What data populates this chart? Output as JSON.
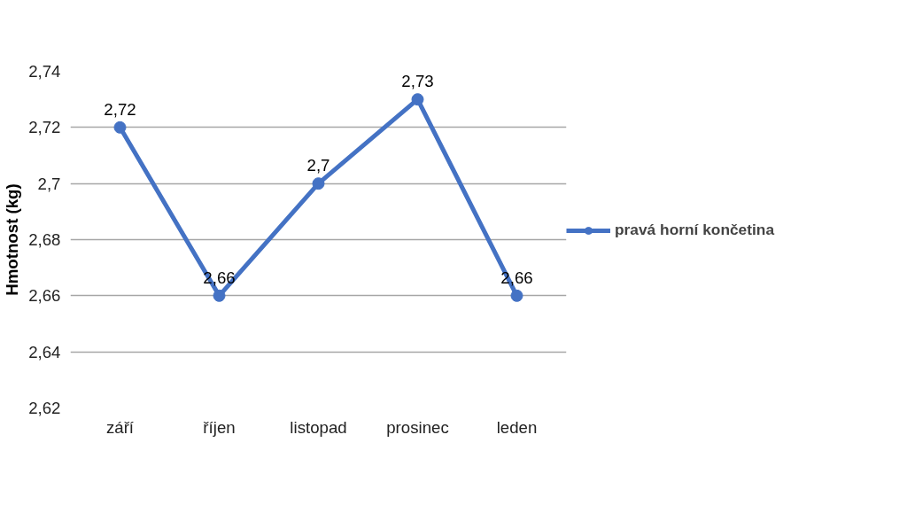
{
  "chart_data": {
    "type": "line",
    "ylabel": "Hmotnost (kg)",
    "categories": [
      "září",
      "říjen",
      "listopad",
      "prosinec",
      "leden"
    ],
    "series": [
      {
        "name": "pravá horní končetina",
        "color": "#4472c4",
        "values": [
          2.72,
          2.66,
          2.7,
          2.73,
          2.66
        ],
        "value_labels": [
          "2,72",
          "2,66",
          "2,7",
          "2,73",
          "2,66"
        ]
      }
    ],
    "ylim": [
      2.62,
      2.74
    ],
    "yticks": [
      {
        "value": 2.62,
        "label": "2,62"
      },
      {
        "value": 2.64,
        "label": "2,64"
      },
      {
        "value": 2.66,
        "label": "2,66"
      },
      {
        "value": 2.68,
        "label": "2,68"
      },
      {
        "value": 2.7,
        "label": "2,7"
      },
      {
        "value": 2.72,
        "label": "2,72"
      },
      {
        "value": 2.74,
        "label": "2,74"
      }
    ],
    "grid": "y",
    "legend": "right",
    "marker": "circle",
    "line_style": "solid"
  }
}
